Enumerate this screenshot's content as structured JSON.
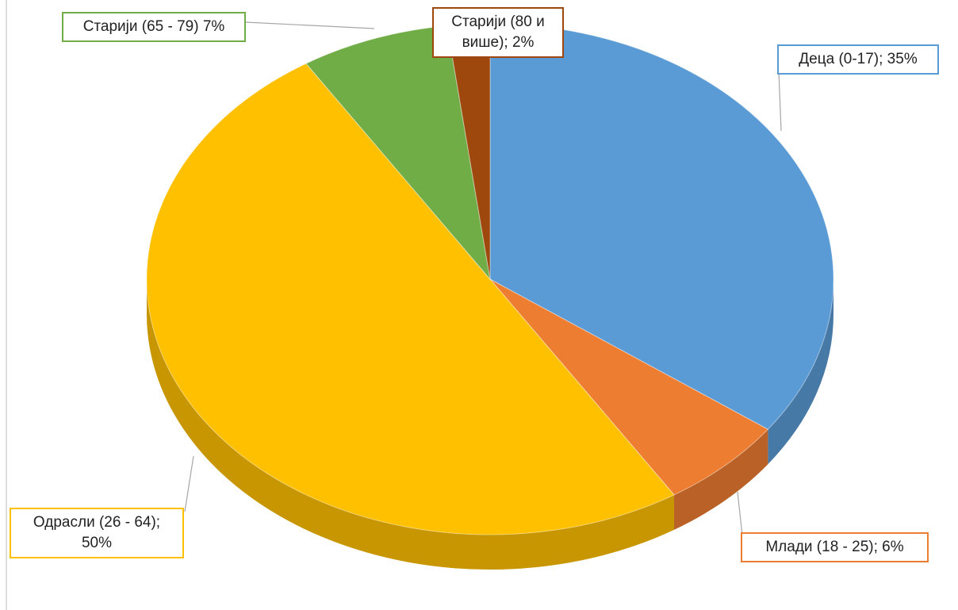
{
  "chart_data": {
    "type": "pie",
    "values": [
      35,
      6,
      50,
      7,
      2
    ],
    "value_labels": [
      "Деца (0-17); 35%",
      "Млади (18 - 25); 6%",
      "Одрасли (26 - 64); 50%",
      "Старији (65 - 79) 7%",
      "Старији (80 и више); 2%"
    ],
    "colors": [
      "#5b9bd5",
      "#ed7d31",
      "#ffc000",
      "#70ad47",
      "#9e480e"
    ]
  }
}
